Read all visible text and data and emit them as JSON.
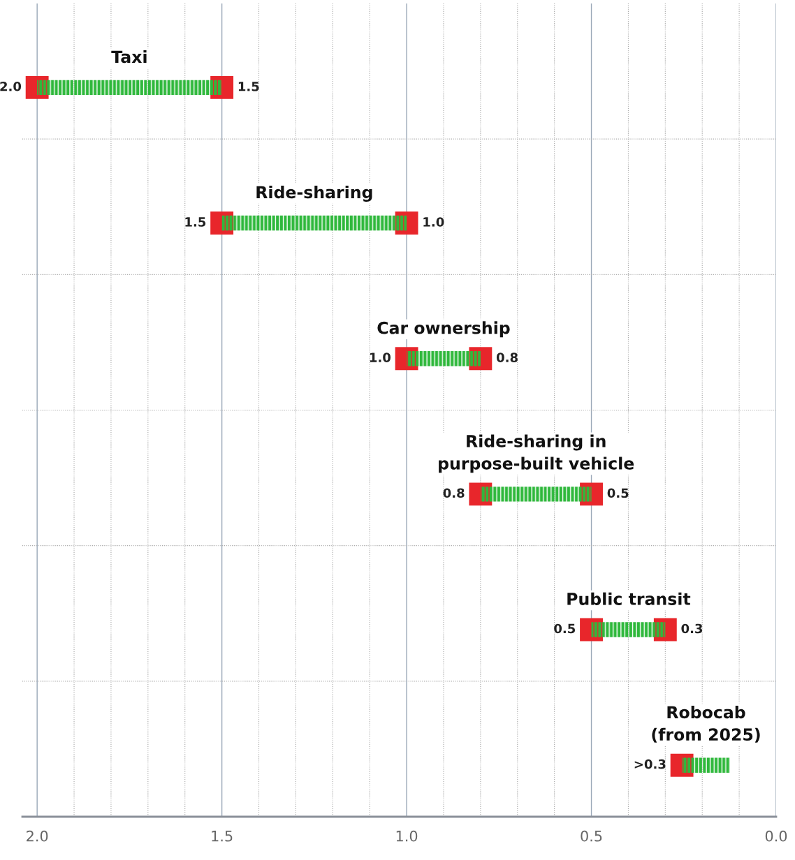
{
  "chart_data": {
    "type": "bar",
    "orientation": "horizontal",
    "categories": [
      "Taxi",
      "Ride-sharing",
      "Car ownership",
      "Ride-sharing in\npurpose-built vehicle",
      "Public transit",
      "Robocab\n(from 2025)"
    ],
    "series": [
      {
        "color": "#2fb83c",
        "base": [
          1.5,
          1.0,
          0.8,
          0.5,
          0.3,
          0.125
        ],
        "values": [
          0.5,
          0.5,
          0.2,
          0.3,
          0.2,
          0.13
        ]
      },
      {
        "type": "scatter",
        "color": "#e8262b",
        "marker": "square",
        "values": [
          2.0,
          1.5,
          1.0,
          0.8,
          0.5,
          0.255
        ],
        "value_labels": [
          "2.0",
          "1.5",
          "1.0",
          "0.8",
          "0.5",
          ">0.3"
        ]
      },
      {
        "type": "scatter",
        "color": "#e8262b",
        "marker": "square",
        "values": [
          1.5,
          1.0,
          0.8,
          0.5,
          0.3,
          null
        ],
        "value_labels": [
          "1.5",
          "1.0",
          "0.8",
          "0.5",
          "0.3",
          null
        ]
      }
    ],
    "xlim": [
      2.04,
      0.0
    ],
    "xticks": [
      {
        "value": 2.0,
        "label": "2.0"
      },
      {
        "value": 1.9,
        "label": null
      },
      {
        "value": 1.8,
        "label": null
      },
      {
        "value": 1.7,
        "label": null
      },
      {
        "value": 1.6,
        "label": null
      },
      {
        "value": 1.5,
        "label": "1.5"
      },
      {
        "value": 1.4,
        "label": null
      },
      {
        "value": 1.3,
        "label": null
      },
      {
        "value": 1.2,
        "label": null
      },
      {
        "value": 1.1,
        "label": null
      },
      {
        "value": 1.0,
        "label": "1.0"
      },
      {
        "value": 0.9,
        "label": null
      },
      {
        "value": 0.8,
        "label": null
      },
      {
        "value": 0.7,
        "label": null
      },
      {
        "value": 0.6,
        "label": null
      },
      {
        "value": 0.5,
        "label": "0.5"
      },
      {
        "value": 0.4,
        "label": null
      },
      {
        "value": 0.3,
        "label": null
      },
      {
        "value": 0.2,
        "label": null
      },
      {
        "value": 0.1,
        "label": null
      },
      {
        "value": 0.0,
        "label": "0.0"
      }
    ],
    "grid": true,
    "tick_labels": "x"
  }
}
